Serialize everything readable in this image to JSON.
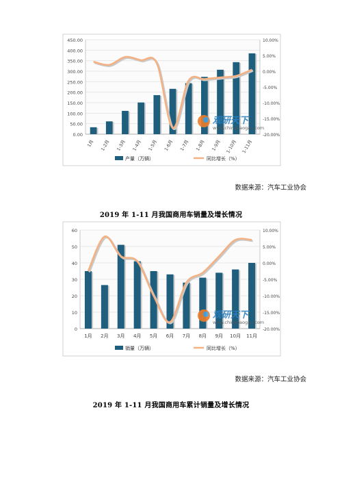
{
  "charts": [
    {
      "source_text": "数据来源：汽车工业协会",
      "caption": "2019 年 1-11 月我国商用车销量及增长情况",
      "watermark": {
        "brand": "观研天下",
        "site": "www.chinabaogao.com"
      },
      "chart_data": {
        "type": "bar",
        "categories": [
          "1月",
          "1-2月",
          "1-3月",
          "1-4月",
          "1-5月",
          "1-6月",
          "1-7月",
          "1-8月",
          "1-9月",
          "1-10月",
          "1-11月"
        ],
        "series": [
          {
            "name": "产量（万辆）",
            "values": [
              33,
              61,
              111,
              151,
              186,
              216,
              243,
              273,
              307,
              343,
              385
            ],
            "color": "#1f5f7d",
            "axis": "left",
            "type": "bar"
          },
          {
            "name": "同比增长（%）",
            "values": [
              3.0,
              2.0,
              4.5,
              3.5,
              2.5,
              -18.0,
              -3.0,
              -2.5,
              -2.0,
              -1.5,
              0.5
            ],
            "color": "#f4b183",
            "axis": "right",
            "type": "line"
          }
        ],
        "y_left": {
          "min": 0,
          "max": 450,
          "step": 50,
          "tick_labels": [
            "0.00",
            "50.00",
            "100.00",
            "150.00",
            "200.00",
            "250.00",
            "300.00",
            "350.00",
            "400.00",
            "450.00"
          ]
        },
        "y_right": {
          "min": -20,
          "max": 10,
          "step": 5,
          "tick_labels": [
            "-20.00%",
            "-15.00%",
            "-10.00%",
            "-5.00%",
            "0.00%",
            "5.00%",
            "10.00%"
          ]
        },
        "x_labels_rotated": true,
        "grid": true,
        "legend": "bottom"
      }
    },
    {
      "source_text": "数据来源：汽车工业协会",
      "caption": "2019 年 1-11 月我国商用车累计销量及增长情况",
      "watermark": {
        "brand": "观研天下",
        "site": "www.chinabaogao.com"
      },
      "chart_data": {
        "type": "bar",
        "categories": [
          "1月",
          "2月",
          "3月",
          "4月",
          "5月",
          "6月",
          "7月",
          "8月",
          "9月",
          "10月",
          "11月"
        ],
        "series": [
          {
            "name": "销量（万辆）",
            "values": [
              35,
              26.5,
              51,
              41,
              35,
              33,
              28,
              31,
              34,
              36,
              40
            ],
            "color": "#1f5f7d",
            "axis": "left",
            "type": "bar"
          },
          {
            "name": "同比增长（%）",
            "values": [
              -2.5,
              8.0,
              2.0,
              0.5,
              -10.0,
              -18.0,
              -6.0,
              -3.0,
              2.0,
              7.0,
              7.0
            ],
            "color": "#f4b183",
            "axis": "right",
            "type": "line"
          }
        ],
        "y_left": {
          "min": 0,
          "max": 60,
          "step": 10,
          "tick_labels": [
            "0",
            "10",
            "20",
            "30",
            "40",
            "50",
            "60"
          ]
        },
        "y_right": {
          "min": -20,
          "max": 10,
          "step": 5,
          "tick_labels": [
            "-20.00%",
            "-15.00%",
            "-10.00%",
            "-5.00%",
            "0.00%",
            "5.00%",
            "10.00%"
          ]
        },
        "x_labels_rotated": false,
        "grid": true,
        "legend": "bottom"
      }
    }
  ]
}
